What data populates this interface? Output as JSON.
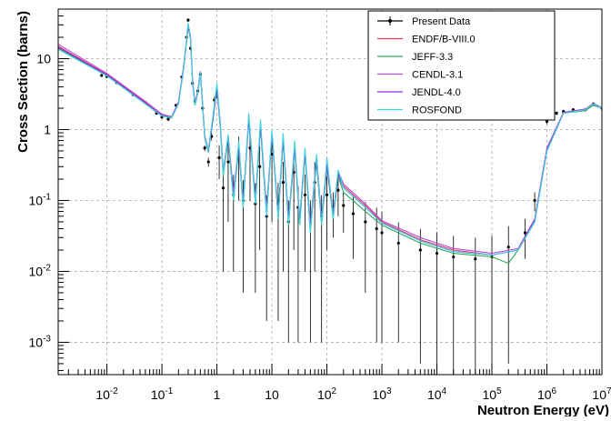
{
  "chart_data": {
    "type": "scatter",
    "xlabel": "Neutron Energy (eV)",
    "ylabel": "Cross Section (barns)",
    "x_scale": "log",
    "y_scale": "log",
    "xlim": [
      0.0013,
      10000000
    ],
    "ylim": [
      0.00035,
      50
    ],
    "grid": true,
    "legend_position": "top-right",
    "x_ticks": [
      {
        "value": 0.01,
        "base": "10",
        "exp": "-2"
      },
      {
        "value": 0.1,
        "base": "10",
        "exp": "-1"
      },
      {
        "value": 1,
        "base": "1",
        "exp": ""
      },
      {
        "value": 10,
        "base": "10",
        "exp": ""
      },
      {
        "value": 100,
        "base": "10",
        "exp": "2"
      },
      {
        "value": 1000,
        "base": "10",
        "exp": "3"
      },
      {
        "value": 10000,
        "base": "10",
        "exp": "4"
      },
      {
        "value": 100000,
        "base": "10",
        "exp": "5"
      },
      {
        "value": 1000000,
        "base": "10",
        "exp": "6"
      },
      {
        "value": 10000000,
        "base": "10",
        "exp": "7"
      }
    ],
    "y_ticks": [
      {
        "value": 0.001,
        "base": "10",
        "exp": "-3"
      },
      {
        "value": 0.01,
        "base": "10",
        "exp": "-2"
      },
      {
        "value": 0.1,
        "base": "10",
        "exp": "-1"
      },
      {
        "value": 1,
        "base": "1",
        "exp": ""
      },
      {
        "value": 10,
        "base": "10",
        "exp": ""
      }
    ],
    "series": [
      {
        "name": "Present Data",
        "color": "#000000",
        "style": "points-with-errorbars",
        "x": [
          0.008,
          0.01,
          0.015,
          0.02,
          0.03,
          0.05,
          0.08,
          0.1,
          0.13,
          0.18,
          0.23,
          0.28,
          0.3,
          0.33,
          0.36,
          0.4,
          0.45,
          0.5,
          0.55,
          0.6,
          0.7,
          0.8,
          0.9,
          1.0,
          1.1,
          1.3,
          1.6,
          2.0,
          2.5,
          3.0,
          4.0,
          5.0,
          6.0,
          8.0,
          10,
          13,
          16,
          20,
          25,
          30,
          40,
          50,
          60,
          80,
          100,
          130,
          160,
          200,
          300,
          500,
          800,
          1000,
          2000,
          5000,
          10000,
          20000,
          50000,
          100000,
          200000,
          400000,
          600000,
          1000000,
          1500000,
          2000000,
          3000000,
          5000000,
          7000000,
          10000000
        ],
        "y": [
          5.8,
          5.6,
          4.6,
          4.0,
          3.1,
          2.4,
          1.7,
          1.5,
          1.4,
          2.2,
          5.5,
          20,
          35,
          14,
          4.5,
          2.5,
          3.5,
          6.0,
          2.0,
          0.55,
          0.35,
          0.8,
          2.6,
          3.2,
          0.4,
          0.15,
          0.35,
          0.12,
          0.45,
          0.1,
          0.55,
          0.09,
          0.3,
          0.06,
          0.45,
          0.09,
          0.18,
          0.05,
          0.25,
          0.08,
          0.12,
          0.05,
          0.18,
          0.06,
          0.12,
          0.08,
          0.14,
          0.085,
          0.065,
          0.05,
          0.04,
          0.035,
          0.025,
          0.02,
          0.018,
          0.016,
          0.015,
          0.016,
          0.022,
          0.035,
          0.1,
          1.3,
          1.7,
          1.8,
          1.9,
          1.9,
          2.3,
          2.0
        ],
        "y_err": [
          0.3,
          0.3,
          0.2,
          0.2,
          0.15,
          0.1,
          0.08,
          0.07,
          0.07,
          0.1,
          0.3,
          1,
          2,
          0.8,
          0.3,
          0.2,
          0.3,
          0.5,
          0.2,
          0.05,
          0.05,
          0.1,
          0.3,
          0.4,
          0.2,
          0.14,
          0.3,
          0.11,
          0.35,
          0.095,
          0.45,
          0.085,
          0.28,
          0.058,
          0.4,
          0.088,
          0.17,
          0.049,
          0.23,
          0.079,
          0.11,
          0.049,
          0.17,
          0.059,
          0.1,
          0.05,
          0.08,
          0.05,
          0.05,
          0.045,
          0.039,
          0.034,
          0.024,
          0.0195,
          0.0178,
          0.0158,
          0.0148,
          0.0158,
          0.0215,
          0.02,
          0.03,
          0.1,
          0.1,
          0.1,
          0.1,
          0.1,
          0.1,
          0.1
        ]
      },
      {
        "name": "ENDF/B-VIII.0",
        "color": "#e8365f",
        "style": "line",
        "x": [
          0.0013,
          0.01,
          0.05,
          0.1,
          0.15,
          0.2,
          0.25,
          0.3,
          0.33,
          0.36,
          0.4,
          0.45,
          0.5,
          0.55,
          0.6,
          0.7,
          0.85,
          1.0,
          1.15,
          1.3,
          1.6,
          2.0,
          2.5,
          3.0,
          3.8,
          5.0,
          6.2,
          8.0,
          10,
          13,
          16,
          20,
          26,
          32,
          40,
          50,
          65,
          80,
          100,
          130,
          160,
          200,
          500,
          1000,
          5000,
          20000,
          100000,
          300000,
          600000,
          1000000,
          2000000,
          5000000,
          7000000,
          10000000
        ],
        "y": [
          15,
          6,
          2.4,
          1.6,
          1.5,
          2.4,
          8,
          30,
          20,
          5,
          2.3,
          3.5,
          6.5,
          2.2,
          0.8,
          0.5,
          1.5,
          4.0,
          1.2,
          0.25,
          0.8,
          0.12,
          0.6,
          0.09,
          1.5,
          0.1,
          1.2,
          0.07,
          0.9,
          0.06,
          0.8,
          0.05,
          0.6,
          0.05,
          0.5,
          0.04,
          0.4,
          0.05,
          0.35,
          0.06,
          0.25,
          0.16,
          0.085,
          0.05,
          0.028,
          0.02,
          0.017,
          0.02,
          0.05,
          0.5,
          1.7,
          1.9,
          2.3,
          2.0
        ]
      },
      {
        "name": "JEFF-3.3",
        "color": "#2fa85a",
        "style": "line",
        "x": [
          0.0013,
          0.01,
          0.05,
          0.1,
          0.15,
          0.2,
          0.25,
          0.3,
          0.33,
          0.36,
          0.4,
          0.45,
          0.5,
          0.55,
          0.6,
          0.7,
          0.85,
          1.0,
          1.15,
          1.3,
          1.6,
          2.0,
          2.5,
          3.0,
          3.8,
          5.0,
          6.2,
          8.0,
          10,
          13,
          16,
          20,
          26,
          32,
          40,
          50,
          65,
          80,
          100,
          130,
          160,
          200,
          500,
          1000,
          5000,
          20000,
          100000,
          200000,
          300000,
          600000,
          1000000,
          2000000,
          5000000,
          7000000,
          10000000
        ],
        "y": [
          14,
          5.8,
          2.3,
          1.55,
          1.45,
          2.3,
          7.5,
          28,
          19,
          4.8,
          2.2,
          3.3,
          6.2,
          2.1,
          0.75,
          0.48,
          1.4,
          3.8,
          1.1,
          0.22,
          0.75,
          0.1,
          0.55,
          0.08,
          1.4,
          0.09,
          1.1,
          0.06,
          0.85,
          0.055,
          0.7,
          0.045,
          0.55,
          0.045,
          0.45,
          0.035,
          0.35,
          0.045,
          0.3,
          0.055,
          0.22,
          0.13,
          0.07,
          0.045,
          0.025,
          0.018,
          0.016,
          0.013,
          0.02,
          0.05,
          0.5,
          1.7,
          1.85,
          2.2,
          2.0
        ]
      },
      {
        "name": "CENDL-3.1",
        "color": "#b44fd6",
        "style": "line",
        "x": [
          0.0013,
          0.01,
          0.05,
          0.1,
          0.15,
          0.2,
          0.25,
          0.3,
          0.33,
          0.36,
          0.4,
          0.45,
          0.5,
          0.55,
          0.6,
          0.7,
          0.85,
          1.0,
          1.15,
          1.3,
          1.6,
          2.0,
          2.5,
          3.0,
          3.8,
          5.0,
          6.2,
          8.0,
          10,
          13,
          16,
          20,
          26,
          32,
          40,
          50,
          65,
          80,
          100,
          130,
          160,
          200,
          500,
          1000,
          5000,
          20000,
          100000,
          300000,
          600000,
          1000000,
          2000000,
          5000000,
          7000000,
          10000000
        ],
        "y": [
          16,
          6.2,
          2.5,
          1.65,
          1.52,
          2.45,
          8.2,
          31,
          21,
          5.1,
          2.35,
          3.6,
          6.6,
          2.25,
          0.82,
          0.52,
          1.55,
          4.1,
          1.25,
          0.26,
          0.82,
          0.13,
          0.62,
          0.095,
          1.55,
          0.105,
          1.25,
          0.075,
          0.92,
          0.065,
          0.82,
          0.055,
          0.62,
          0.055,
          0.52,
          0.045,
          0.42,
          0.055,
          0.37,
          0.065,
          0.26,
          0.17,
          0.09,
          0.052,
          0.03,
          0.021,
          0.018,
          0.021,
          0.055,
          0.55,
          1.75,
          1.95,
          2.35,
          2.05
        ]
      },
      {
        "name": "JENDL-4.0",
        "color": "#8a2be2",
        "style": "line",
        "x": [
          0.0013,
          0.01,
          0.05,
          0.1,
          0.15,
          0.2,
          0.25,
          0.3,
          0.33,
          0.36,
          0.4,
          0.45,
          0.5,
          0.55,
          0.6,
          0.7,
          0.85,
          1.0,
          1.15,
          1.3,
          1.6,
          2.0,
          2.5,
          3.0,
          3.8,
          5.0,
          6.2,
          8.0,
          10,
          13,
          16,
          20,
          26,
          32,
          40,
          50,
          65,
          80,
          100,
          130,
          160,
          200,
          500,
          1000,
          5000,
          20000,
          100000,
          300000,
          600000,
          1000000,
          2000000,
          5000000,
          7000000,
          10000000
        ],
        "y": [
          14.5,
          5.9,
          2.35,
          1.58,
          1.48,
          2.35,
          7.8,
          29,
          19.5,
          4.9,
          2.25,
          3.4,
          6.3,
          2.15,
          0.78,
          0.49,
          1.45,
          3.9,
          1.15,
          0.24,
          0.78,
          0.11,
          0.58,
          0.085,
          1.45,
          0.095,
          1.15,
          0.065,
          0.88,
          0.058,
          0.75,
          0.048,
          0.58,
          0.048,
          0.48,
          0.038,
          0.38,
          0.048,
          0.32,
          0.058,
          0.24,
          0.15,
          0.08,
          0.048,
          0.027,
          0.019,
          0.017,
          0.02,
          0.052,
          0.52,
          1.72,
          1.9,
          2.3,
          2.0
        ]
      },
      {
        "name": "ROSFOND",
        "color": "#39d8e0",
        "style": "line",
        "x": [
          0.0013,
          0.01,
          0.05,
          0.1,
          0.15,
          0.2,
          0.25,
          0.3,
          0.33,
          0.36,
          0.4,
          0.45,
          0.5,
          0.55,
          0.6,
          0.7,
          0.85,
          1.0,
          1.15,
          1.3,
          1.6,
          2.0,
          2.5,
          3.0,
          3.8,
          5.0,
          6.2,
          8.0,
          10,
          13,
          16,
          20,
          26,
          32,
          40,
          50,
          65,
          80,
          100,
          130,
          160,
          200,
          500,
          1000,
          5000,
          20000,
          100000,
          300000,
          600000,
          1000000,
          2000000,
          5000000,
          7000000,
          10000000
        ],
        "y": [
          13.5,
          5.7,
          2.3,
          1.55,
          1.47,
          2.3,
          7.6,
          32,
          20,
          4.7,
          2.2,
          3.4,
          6.4,
          2.2,
          0.78,
          0.5,
          1.6,
          4.5,
          1.2,
          0.23,
          0.85,
          0.1,
          0.7,
          0.08,
          1.7,
          0.09,
          1.4,
          0.06,
          1.0,
          0.055,
          0.9,
          0.045,
          0.7,
          0.045,
          0.55,
          0.035,
          0.45,
          0.045,
          0.4,
          0.055,
          0.27,
          0.15,
          0.08,
          0.048,
          0.027,
          0.019,
          0.017,
          0.02,
          0.05,
          0.5,
          1.7,
          1.9,
          2.3,
          2.0
        ]
      }
    ]
  }
}
